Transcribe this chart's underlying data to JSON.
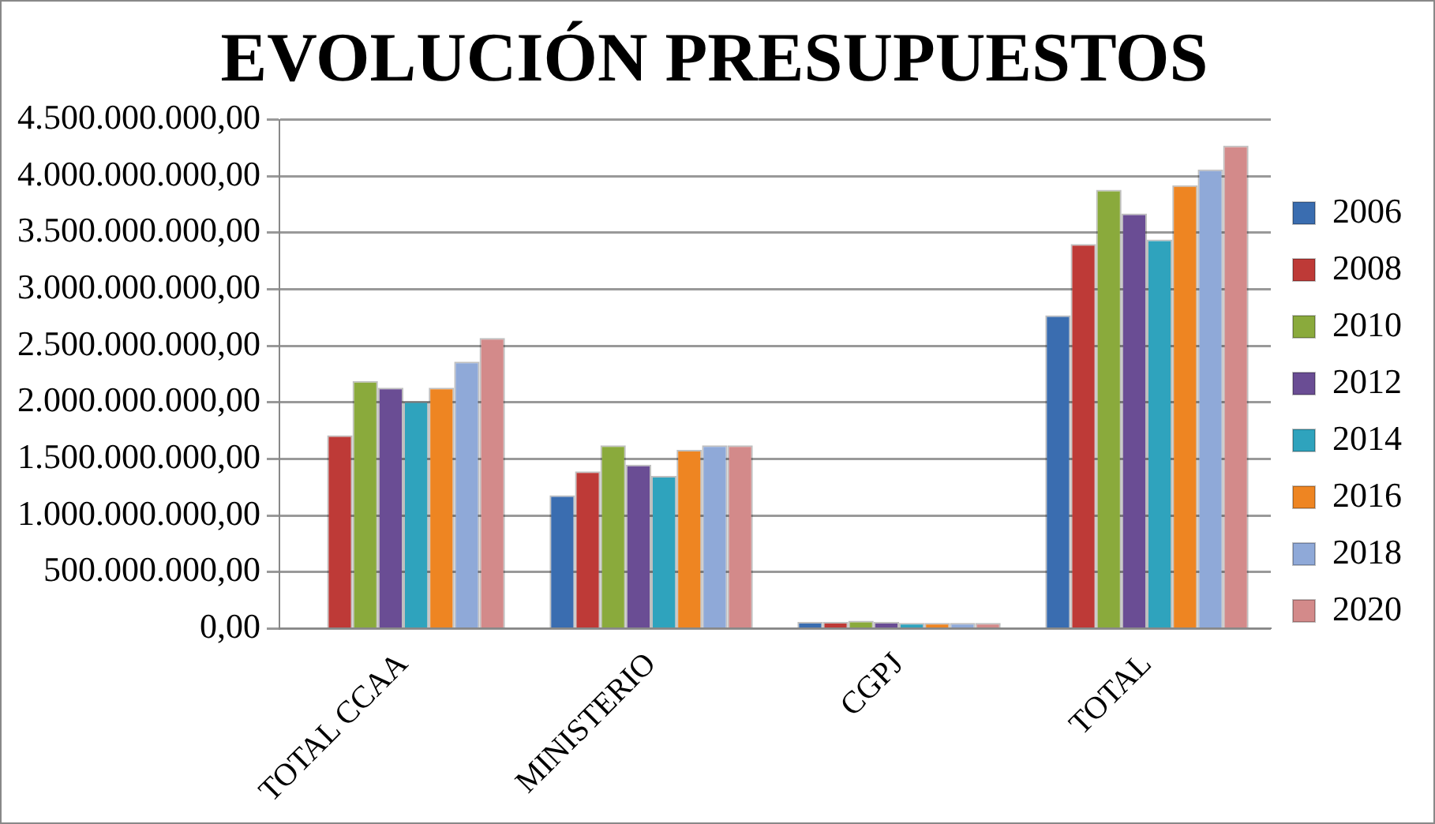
{
  "chart_data": {
    "type": "bar",
    "title": "EVOLUCIÓN PRESUPUESTOS",
    "categories": [
      "TOTAL CCAA",
      "MINISTERIO",
      "CGPJ",
      "TOTAL"
    ],
    "series": [
      {
        "name": "2006",
        "color": "#3a6db0",
        "values": [
          null,
          1180000000,
          60000000,
          2770000000
        ]
      },
      {
        "name": "2008",
        "color": "#be3a37",
        "values": [
          1710000000,
          1390000000,
          60000000,
          3400000000
        ]
      },
      {
        "name": "2010",
        "color": "#8aaa3c",
        "values": [
          2190000000,
          1620000000,
          70000000,
          3880000000
        ]
      },
      {
        "name": "2012",
        "color": "#6a4d94",
        "values": [
          2130000000,
          1450000000,
          60000000,
          3670000000
        ]
      },
      {
        "name": "2014",
        "color": "#2fa3bd",
        "values": [
          2010000000,
          1350000000,
          50000000,
          3440000000
        ]
      },
      {
        "name": "2016",
        "color": "#ee8522",
        "values": [
          2130000000,
          1580000000,
          50000000,
          3920000000
        ]
      },
      {
        "name": "2018",
        "color": "#8fa9d8",
        "values": [
          2360000000,
          1620000000,
          50000000,
          4060000000
        ]
      },
      {
        "name": "2020",
        "color": "#d38a8a",
        "values": [
          2570000000,
          1620000000,
          50000000,
          4270000000
        ]
      }
    ],
    "ylim": [
      0,
      4500000000
    ],
    "yticks": [
      {
        "value": 0,
        "label": "0,00"
      },
      {
        "value": 500000000,
        "label": "500.000.000,00"
      },
      {
        "value": 1000000000,
        "label": "1.000.000.000,00"
      },
      {
        "value": 1500000000,
        "label": "1.500.000.000,00"
      },
      {
        "value": 2000000000,
        "label": "2.000.000.000,00"
      },
      {
        "value": 2500000000,
        "label": "2.500.000.000,00"
      },
      {
        "value": 3000000000,
        "label": "3.000.000.000,00"
      },
      {
        "value": 3500000000,
        "label": "3.500.000.000,00"
      },
      {
        "value": 4000000000,
        "label": "4.000.000.000,00"
      },
      {
        "value": 4500000000,
        "label": "4.500.000.000,00"
      }
    ],
    "grid": "y",
    "legend": "right"
  }
}
